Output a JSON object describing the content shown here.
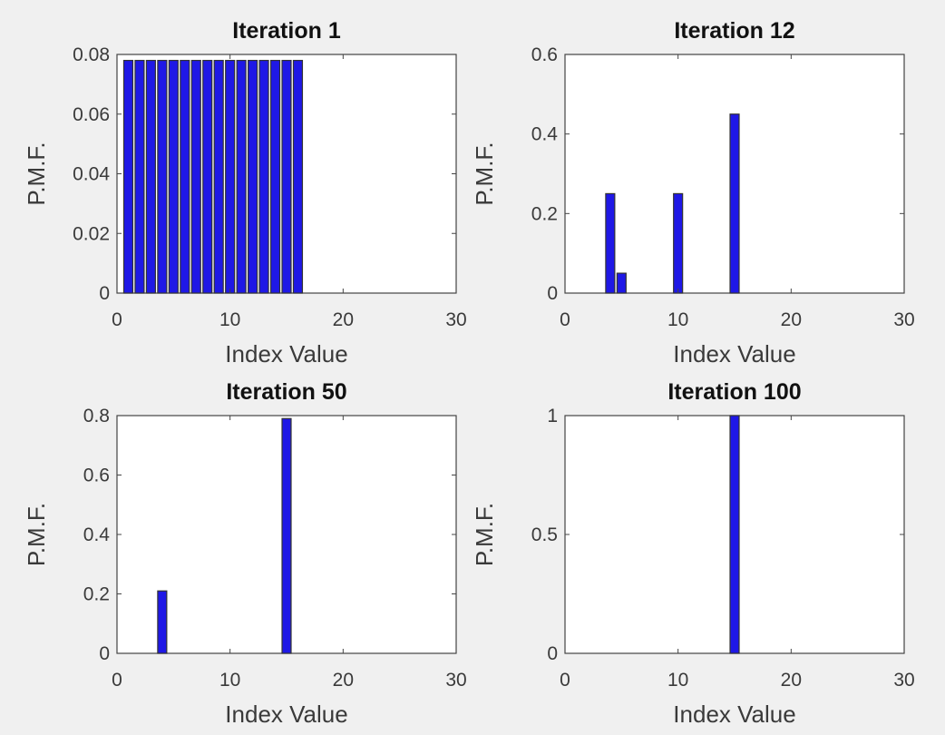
{
  "colors": {
    "bar": "#1f18e6",
    "bar_edge": "#333333",
    "background": "#f0f0f0",
    "axes": "#ffffff"
  },
  "chart_data": [
    {
      "type": "bar",
      "title": "Iteration 1",
      "xlabel": "Index Value",
      "ylabel": "P.M.F.",
      "xlim": [
        0,
        30
      ],
      "ylim": [
        0,
        0.08
      ],
      "xticks": [
        "0",
        "10",
        "20",
        "30"
      ],
      "yticks": [
        "0",
        "0.02",
        "0.04",
        "0.06",
        "0.08"
      ],
      "x": [
        1,
        2,
        3,
        4,
        5,
        6,
        7,
        8,
        9,
        10,
        11,
        12,
        13,
        14,
        15,
        16
      ],
      "values": [
        0.078,
        0.078,
        0.078,
        0.078,
        0.078,
        0.078,
        0.078,
        0.078,
        0.078,
        0.078,
        0.078,
        0.078,
        0.078,
        0.078,
        0.078,
        0.078
      ],
      "grid": false
    },
    {
      "type": "bar",
      "title": "Iteration 12",
      "xlabel": "Index Value",
      "ylabel": "P.M.F.",
      "xlim": [
        0,
        30
      ],
      "ylim": [
        0,
        0.6
      ],
      "xticks": [
        "0",
        "10",
        "20",
        "30"
      ],
      "yticks": [
        "0",
        "0.2",
        "0.4",
        "0.6"
      ],
      "x": [
        4,
        5,
        10,
        15
      ],
      "values": [
        0.25,
        0.05,
        0.25,
        0.45
      ],
      "grid": false
    },
    {
      "type": "bar",
      "title": "Iteration 50",
      "xlabel": "Index Value",
      "ylabel": "P.M.F.",
      "xlim": [
        0,
        30
      ],
      "ylim": [
        0,
        0.8
      ],
      "xticks": [
        "0",
        "10",
        "20",
        "30"
      ],
      "yticks": [
        "0",
        "0.2",
        "0.4",
        "0.6",
        "0.8"
      ],
      "x": [
        4,
        15
      ],
      "values": [
        0.21,
        0.79
      ],
      "grid": false
    },
    {
      "type": "bar",
      "title": "Iteration 100",
      "xlabel": "Index Value",
      "ylabel": "P.M.F.",
      "xlim": [
        0,
        30
      ],
      "ylim": [
        0,
        1
      ],
      "xticks": [
        "0",
        "10",
        "20",
        "30"
      ],
      "yticks": [
        "0",
        "0.5",
        "1"
      ],
      "x": [
        15
      ],
      "values": [
        1.0
      ],
      "grid": false
    }
  ]
}
